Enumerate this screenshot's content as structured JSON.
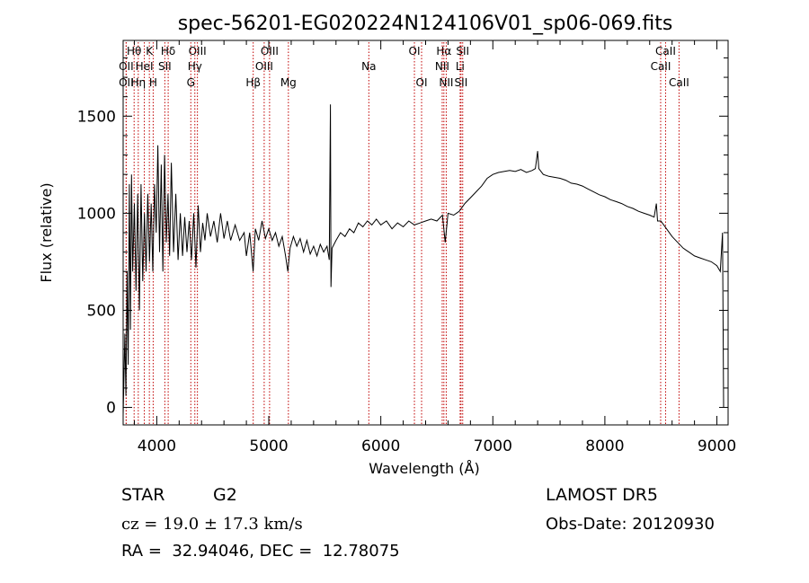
{
  "chart_data": {
    "type": "line",
    "title": "spec-56201-EG020224N124106V01_sp06-069.fits",
    "xlabel": "Wavelength (Å)",
    "ylabel": "Flux (relative)",
    "xlim": [
      3700,
      9100
    ],
    "ylim": [
      -90,
      1890
    ],
    "x_ticks": [
      4000,
      5000,
      6000,
      7000,
      8000,
      9000
    ],
    "y_ticks": [
      0,
      500,
      1000,
      1500
    ],
    "x_minor_step": 200,
    "y_minor_step": 100,
    "series": [
      {
        "points": [
          [
            3700,
            -40
          ],
          [
            3715,
            380
          ],
          [
            3725,
            60
          ],
          [
            3735,
            700
          ],
          [
            3745,
            220
          ],
          [
            3755,
            1150
          ],
          [
            3765,
            400
          ],
          [
            3775,
            1200
          ],
          [
            3785,
            700
          ],
          [
            3800,
            1050
          ],
          [
            3815,
            600
          ],
          [
            3830,
            1100
          ],
          [
            3845,
            500
          ],
          [
            3860,
            1150
          ],
          [
            3875,
            650
          ],
          [
            3890,
            1000
          ],
          [
            3905,
            700
          ],
          [
            3920,
            1100
          ],
          [
            3935,
            750
          ],
          [
            3950,
            1050
          ],
          [
            3965,
            700
          ],
          [
            3980,
            1150
          ],
          [
            3995,
            900
          ],
          [
            4010,
            1350
          ],
          [
            4025,
            800
          ],
          [
            4040,
            1250
          ],
          [
            4055,
            700
          ],
          [
            4070,
            1300
          ],
          [
            4085,
            850
          ],
          [
            4100,
            1100
          ],
          [
            4115,
            780
          ],
          [
            4130,
            1260
          ],
          [
            4150,
            800
          ],
          [
            4170,
            1100
          ],
          [
            4190,
            760
          ],
          [
            4210,
            1000
          ],
          [
            4230,
            780
          ],
          [
            4250,
            980
          ],
          [
            4270,
            800
          ],
          [
            4290,
            960
          ],
          [
            4310,
            760
          ],
          [
            4330,
            1000
          ],
          [
            4350,
            720
          ],
          [
            4370,
            1040
          ],
          [
            4390,
            800
          ],
          [
            4410,
            950
          ],
          [
            4430,
            860
          ],
          [
            4450,
            1000
          ],
          [
            4480,
            880
          ],
          [
            4510,
            960
          ],
          [
            4540,
            850
          ],
          [
            4570,
            1000
          ],
          [
            4600,
            870
          ],
          [
            4630,
            960
          ],
          [
            4660,
            860
          ],
          [
            4700,
            940
          ],
          [
            4740,
            860
          ],
          [
            4780,
            900
          ],
          [
            4800,
            780
          ],
          [
            4830,
            900
          ],
          [
            4860,
            700
          ],
          [
            4880,
            920
          ],
          [
            4910,
            860
          ],
          [
            4940,
            960
          ],
          [
            4970,
            870
          ],
          [
            5000,
            920
          ],
          [
            5030,
            860
          ],
          [
            5060,
            900
          ],
          [
            5090,
            830
          ],
          [
            5120,
            880
          ],
          [
            5150,
            780
          ],
          [
            5170,
            700
          ],
          [
            5190,
            820
          ],
          [
            5220,
            880
          ],
          [
            5250,
            830
          ],
          [
            5280,
            870
          ],
          [
            5310,
            800
          ],
          [
            5340,
            860
          ],
          [
            5370,
            790
          ],
          [
            5400,
            830
          ],
          [
            5430,
            780
          ],
          [
            5460,
            840
          ],
          [
            5490,
            800
          ],
          [
            5520,
            830
          ],
          [
            5540,
            760
          ],
          [
            5550,
            1560
          ],
          [
            5555,
            620
          ],
          [
            5565,
            820
          ],
          [
            5600,
            860
          ],
          [
            5640,
            900
          ],
          [
            5680,
            880
          ],
          [
            5720,
            920
          ],
          [
            5760,
            900
          ],
          [
            5800,
            950
          ],
          [
            5840,
            930
          ],
          [
            5880,
            960
          ],
          [
            5920,
            940
          ],
          [
            5960,
            970
          ],
          [
            6000,
            940
          ],
          [
            6050,
            960
          ],
          [
            6100,
            920
          ],
          [
            6150,
            950
          ],
          [
            6200,
            930
          ],
          [
            6250,
            960
          ],
          [
            6300,
            940
          ],
          [
            6350,
            950
          ],
          [
            6400,
            960
          ],
          [
            6450,
            970
          ],
          [
            6500,
            960
          ],
          [
            6550,
            990
          ],
          [
            6575,
            850
          ],
          [
            6600,
            1000
          ],
          [
            6650,
            990
          ],
          [
            6700,
            1010
          ],
          [
            6750,
            1050
          ],
          [
            6800,
            1080
          ],
          [
            6850,
            1110
          ],
          [
            6900,
            1140
          ],
          [
            6950,
            1180
          ],
          [
            7000,
            1200
          ],
          [
            7050,
            1210
          ],
          [
            7100,
            1215
          ],
          [
            7150,
            1220
          ],
          [
            7200,
            1215
          ],
          [
            7250,
            1225
          ],
          [
            7300,
            1210
          ],
          [
            7350,
            1220
          ],
          [
            7380,
            1230
          ],
          [
            7400,
            1320
          ],
          [
            7410,
            1230
          ],
          [
            7450,
            1200
          ],
          [
            7500,
            1190
          ],
          [
            7550,
            1185
          ],
          [
            7600,
            1180
          ],
          [
            7650,
            1170
          ],
          [
            7700,
            1155
          ],
          [
            7750,
            1150
          ],
          [
            7800,
            1140
          ],
          [
            7850,
            1125
          ],
          [
            7900,
            1110
          ],
          [
            7950,
            1095
          ],
          [
            8000,
            1085
          ],
          [
            8050,
            1070
          ],
          [
            8100,
            1060
          ],
          [
            8150,
            1050
          ],
          [
            8200,
            1035
          ],
          [
            8250,
            1025
          ],
          [
            8300,
            1010
          ],
          [
            8350,
            1000
          ],
          [
            8400,
            990
          ],
          [
            8440,
            980
          ],
          [
            8460,
            1050
          ],
          [
            8470,
            960
          ],
          [
            8500,
            960
          ],
          [
            8550,
            920
          ],
          [
            8600,
            880
          ],
          [
            8650,
            850
          ],
          [
            8700,
            820
          ],
          [
            8750,
            800
          ],
          [
            8800,
            780
          ],
          [
            8850,
            770
          ],
          [
            8900,
            760
          ],
          [
            8950,
            750
          ],
          [
            9000,
            730
          ],
          [
            9030,
            700
          ],
          [
            9050,
            900
          ],
          [
            9060,
            0
          ]
        ]
      }
    ],
    "emission_lines": [
      {
        "label": "Hθ",
        "x": 3798,
        "row": 0
      },
      {
        "label": "K",
        "x": 3934,
        "row": 0
      },
      {
        "label": "Hδ",
        "x": 4102,
        "row": 0
      },
      {
        "label": "OIII",
        "x": 4363,
        "row": 0
      },
      {
        "label": "OIII",
        "x": 5007,
        "row": 0
      },
      {
        "label": "OI",
        "x": 6300,
        "row": 0
      },
      {
        "label": "Hα",
        "x": 6563,
        "row": 0
      },
      {
        "label": "SII",
        "x": 6731,
        "row": 0
      },
      {
        "label": "CaII",
        "x": 8542,
        "row": 0
      },
      {
        "label": "OII",
        "x": 3727,
        "row": 1
      },
      {
        "label": "HeI",
        "x": 3889,
        "row": 1
      },
      {
        "label": "SII",
        "x": 4072,
        "row": 1
      },
      {
        "label": "Hγ",
        "x": 4340,
        "row": 1
      },
      {
        "label": "OIII",
        "x": 4959,
        "row": 1
      },
      {
        "label": "Na",
        "x": 5893,
        "row": 1
      },
      {
        "label": "NII",
        "x": 6548,
        "row": 1
      },
      {
        "label": "Li",
        "x": 6708,
        "row": 1
      },
      {
        "label": "CaII",
        "x": 8498,
        "row": 1
      },
      {
        "label": "OII",
        "x": 3727,
        "row": 2
      },
      {
        "label": "Hη",
        "x": 3835,
        "row": 2
      },
      {
        "label": "H",
        "x": 3968,
        "row": 2
      },
      {
        "label": "G",
        "x": 4304,
        "row": 2
      },
      {
        "label": "Hβ",
        "x": 4861,
        "row": 2
      },
      {
        "label": "Mg",
        "x": 5175,
        "row": 2
      },
      {
        "label": "OI",
        "x": 6364,
        "row": 2
      },
      {
        "label": "NII",
        "x": 6584,
        "row": 2
      },
      {
        "label": "SII",
        "x": 6716,
        "row": 2
      },
      {
        "label": "CaII",
        "x": 8662,
        "row": 2
      }
    ],
    "line_color": "#000000",
    "marker_color": "#c00000",
    "grid": false
  },
  "info": {
    "class": "STAR",
    "subclass": "G2",
    "survey": "LAMOST DR5",
    "cz": "cz = 19.0 ± 17.3 km/s",
    "obs_date": "Obs-Date: 20120930",
    "coords": "RA =  32.94046, DEC =  12.78075"
  }
}
